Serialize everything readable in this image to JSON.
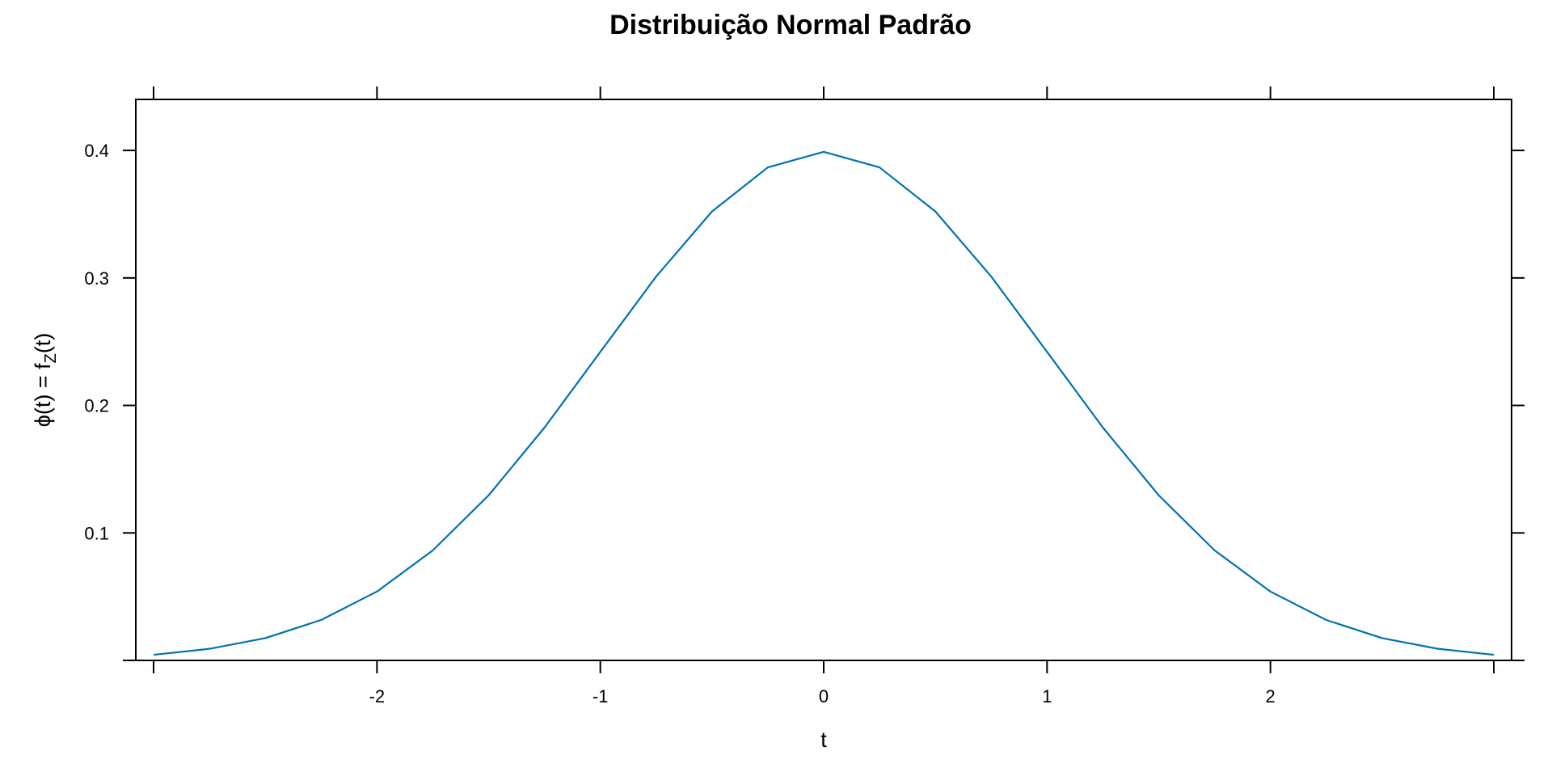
{
  "chart_data": {
    "type": "line",
    "title": "Distribuição Normal Padrão",
    "xlabel": "t",
    "ylabel": {
      "main": "ϕ(t) = f",
      "subscript": "Z",
      "suffix": "(t)"
    },
    "xlim": [
      -3.0,
      3.0
    ],
    "ylim": [
      0.0,
      0.44
    ],
    "x_ticks": [
      -2,
      -1,
      0,
      1,
      2
    ],
    "x_tick_labels": [
      "-2",
      "-1",
      "0",
      "1",
      "2"
    ],
    "y_ticks": [
      0.1,
      0.2,
      0.3,
      0.4
    ],
    "y_tick_labels": [
      "0.1",
      "0.2",
      "0.3",
      "0.4"
    ],
    "grid": false,
    "legend": "none",
    "line_color": "#0072B2",
    "series": [
      {
        "x": [
          -3.0,
          -2.75,
          -2.5,
          -2.25,
          -2.0,
          -1.75,
          -1.5,
          -1.25,
          -1.0,
          -0.75,
          -0.5,
          -0.25,
          0.0,
          0.25,
          0.5,
          0.75,
          1.0,
          1.25,
          1.5,
          1.75,
          2.0,
          2.25,
          2.5,
          2.75,
          3.0
        ],
        "values": [
          0.0044,
          0.0091,
          0.0175,
          0.0317,
          0.054,
          0.0863,
          0.1295,
          0.1826,
          0.242,
          0.3011,
          0.3521,
          0.3867,
          0.3989,
          0.3867,
          0.3521,
          0.3011,
          0.242,
          0.1826,
          0.1295,
          0.0863,
          0.054,
          0.0317,
          0.0175,
          0.0091,
          0.0044
        ]
      }
    ]
  }
}
